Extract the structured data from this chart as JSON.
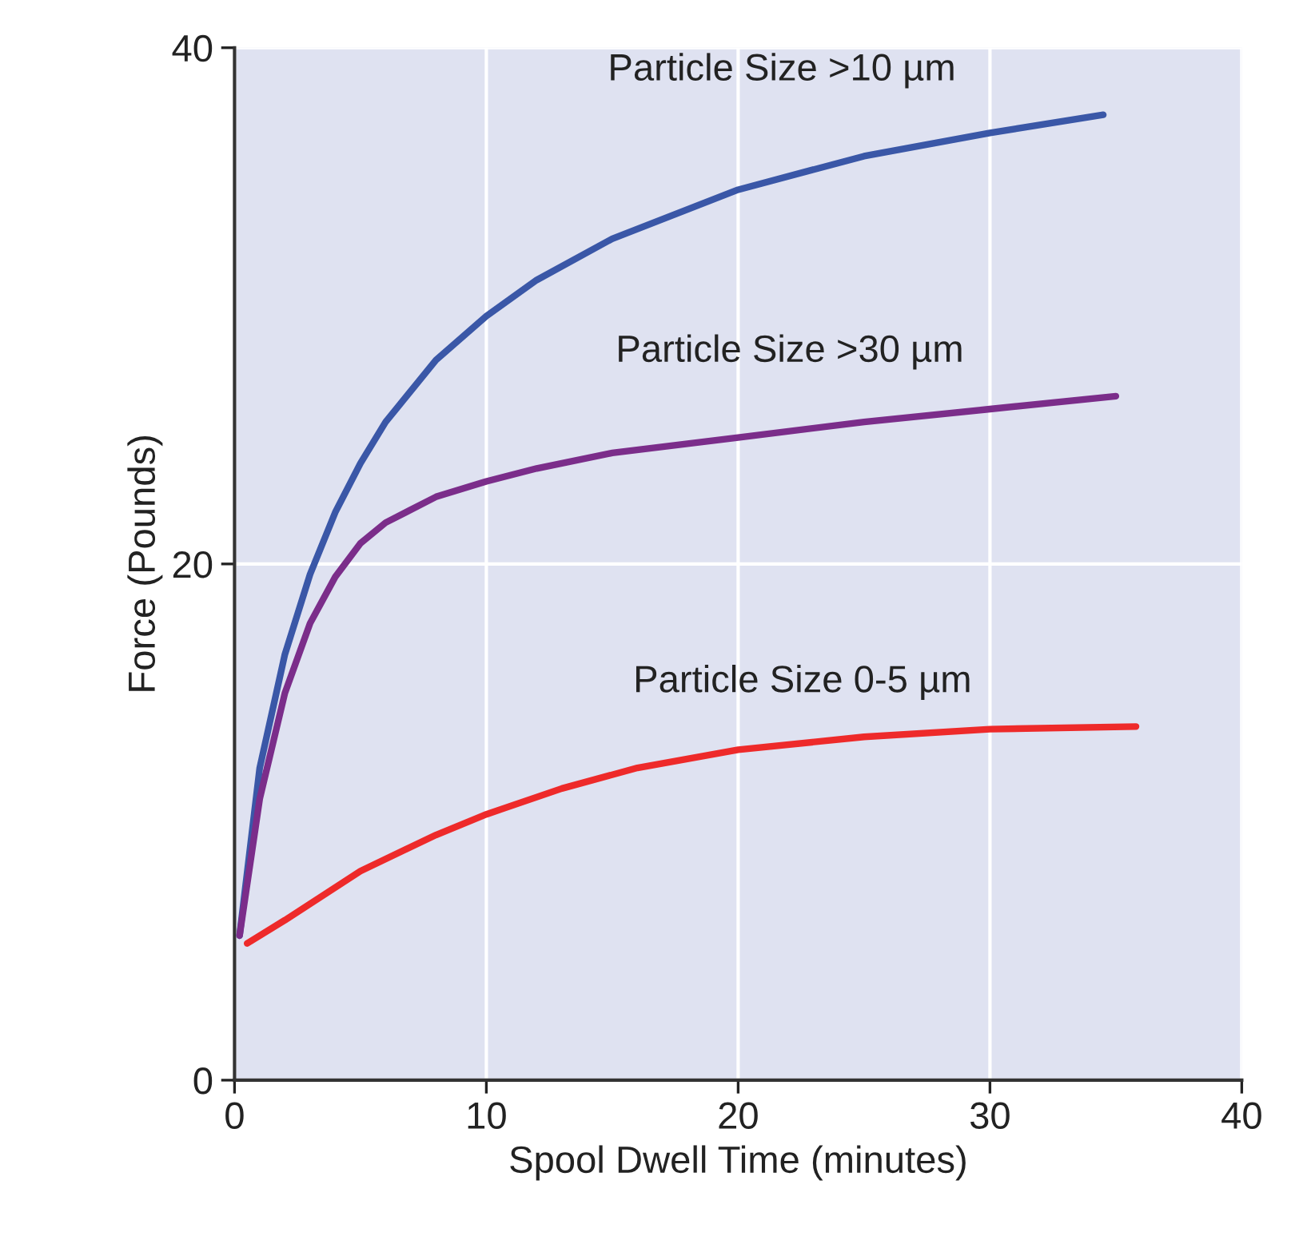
{
  "chart_data": {
    "type": "line",
    "xlabel": "Spool Dwell Time (minutes)",
    "ylabel": "Force (Pounds)",
    "xlim": [
      0,
      40
    ],
    "ylim": [
      0,
      40
    ],
    "xticks": [
      0,
      10,
      20,
      30,
      40
    ],
    "yticks": [
      0,
      20,
      40
    ],
    "grid": true,
    "marker": "none",
    "line_style": "solid",
    "series": [
      {
        "name": "Particle Size >10 µm",
        "color": "#3a57a7",
        "x": [
          0.2,
          1,
          2,
          3,
          4,
          5,
          6,
          8,
          10,
          12,
          15,
          20,
          25,
          30,
          34.5
        ],
        "values": [
          5.6,
          12.1,
          16.5,
          19.6,
          22,
          23.9,
          25.5,
          27.9,
          29.6,
          31,
          32.6,
          34.5,
          35.8,
          36.7,
          37.4
        ]
      },
      {
        "name": "Particle Size >30 µm",
        "color": "#7b2d8a",
        "x": [
          0.2,
          1,
          2,
          3,
          4,
          5,
          6,
          8,
          10,
          12,
          15,
          20,
          25,
          30,
          35
        ],
        "values": [
          5.6,
          10.9,
          15,
          17.7,
          19.5,
          20.8,
          21.6,
          22.6,
          23.2,
          23.7,
          24.3,
          24.9,
          25.5,
          26,
          26.5
        ]
      },
      {
        "name": "Particle Size 0-5 µm",
        "color": "#ee2a2a",
        "x": [
          0.5,
          2,
          5,
          8,
          10,
          13,
          16,
          20,
          25,
          30,
          35.8
        ],
        "values": [
          5.3,
          6.2,
          8.1,
          9.5,
          10.3,
          11.3,
          12.1,
          12.8,
          13.3,
          13.6,
          13.7
        ]
      }
    ]
  }
}
